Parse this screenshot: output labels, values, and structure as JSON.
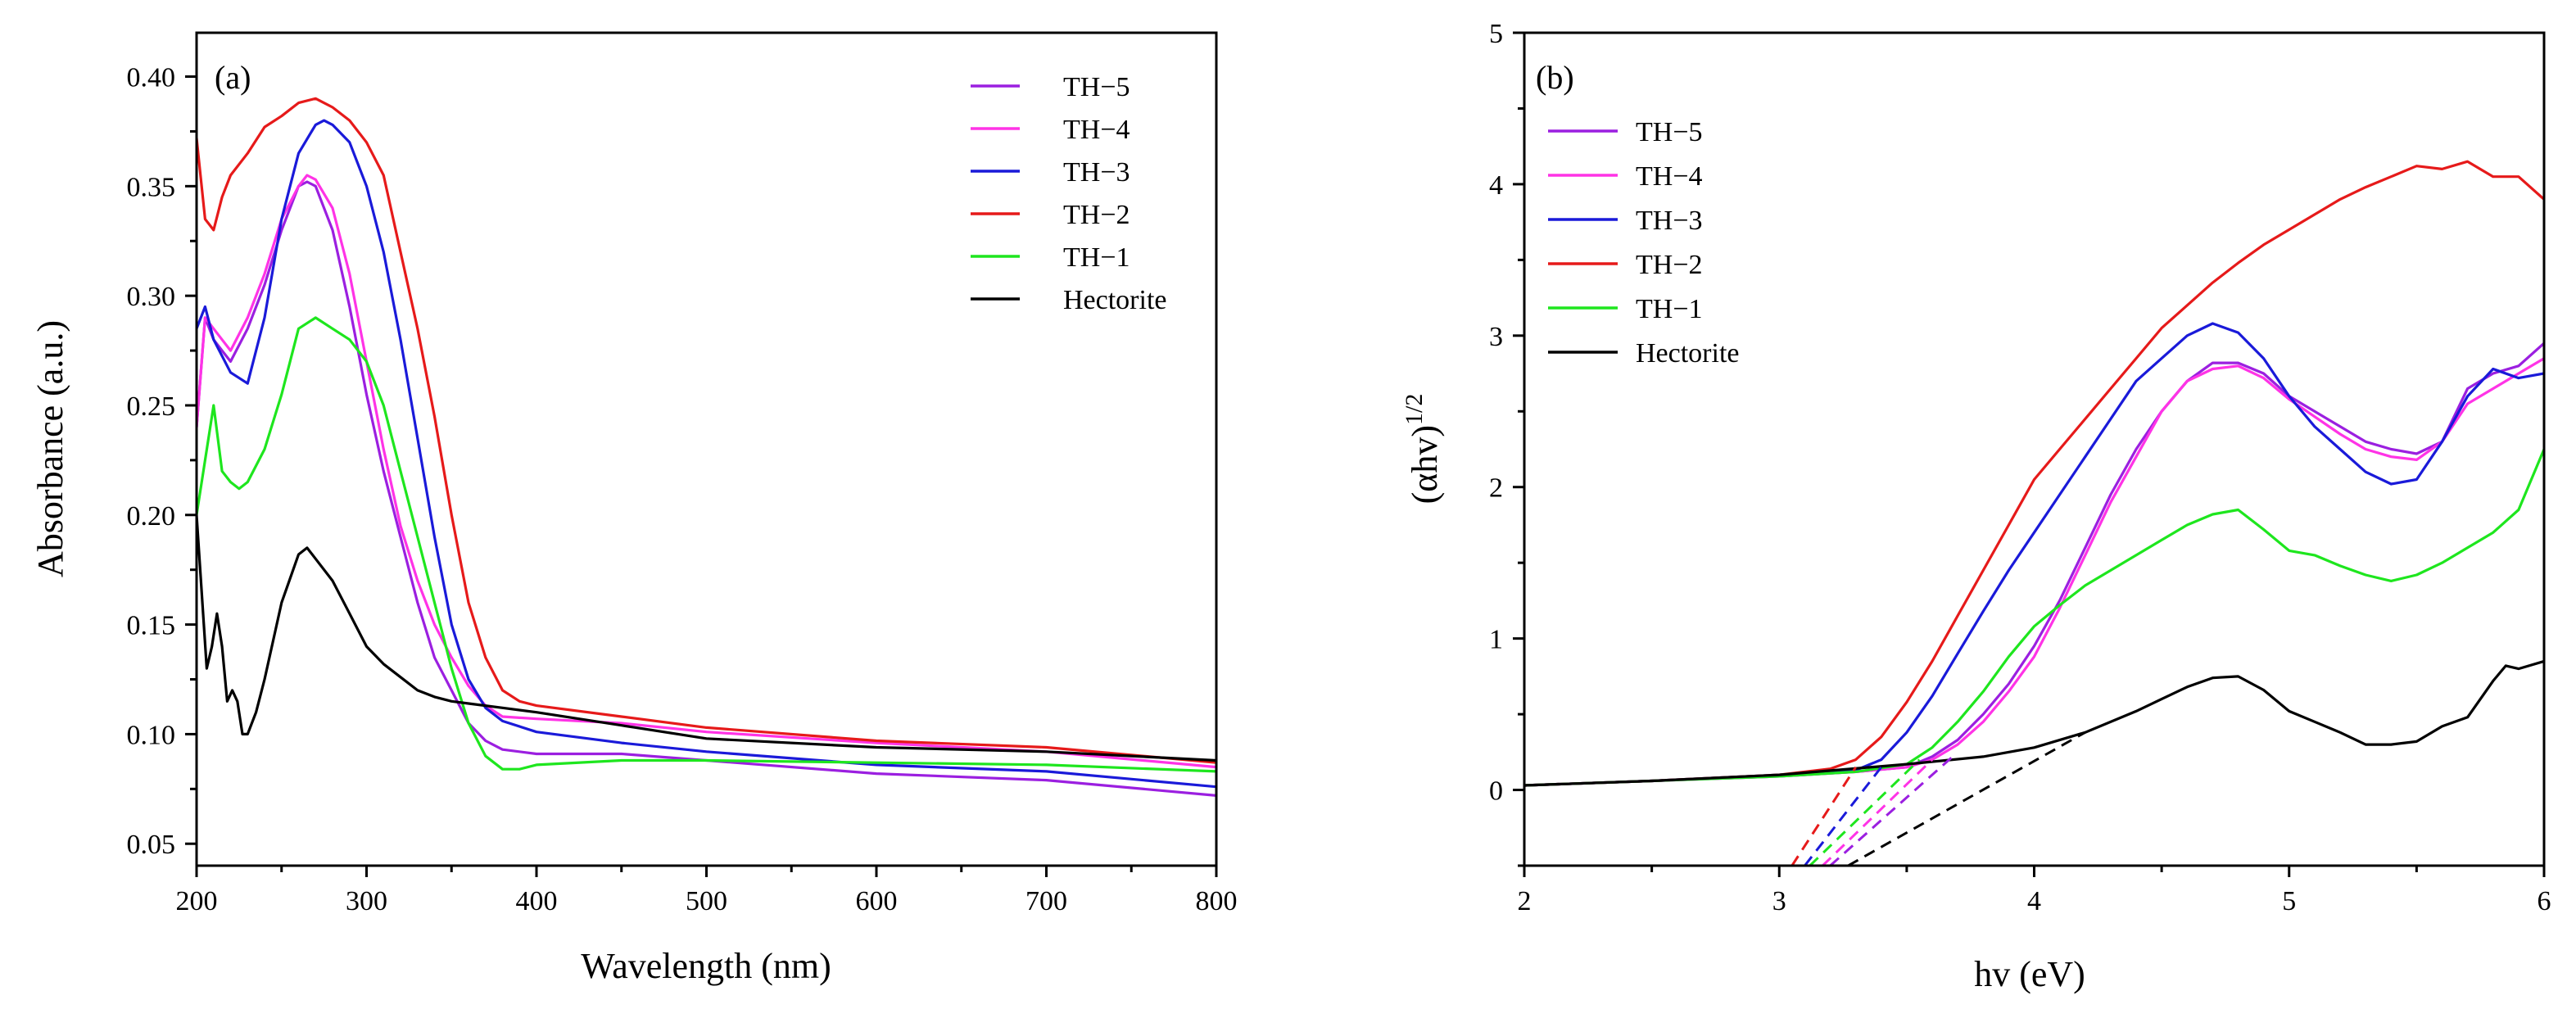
{
  "chart_data": [
    {
      "type": "line",
      "panel_label": "(a)",
      "xlabel": "Wavelength (nm)",
      "ylabel": "Absorbance (a.u.)",
      "xlim": [
        200,
        800
      ],
      "ylim": [
        0.04,
        0.42
      ],
      "xticks": [
        200,
        300,
        400,
        500,
        600,
        700,
        800
      ],
      "xtick_labels": [
        "200",
        "300",
        "400",
        "500",
        "600",
        "700",
        "800"
      ],
      "yticks": [
        0.05,
        0.1,
        0.15,
        0.2,
        0.25,
        0.3,
        0.35,
        0.4
      ],
      "ytick_labels": [
        "0.05",
        "0.10",
        "0.15",
        "0.20",
        "0.25",
        "0.30",
        "0.35",
        "0.40"
      ],
      "legend_position": "top-right",
      "series": [
        {
          "name": "TH−5",
          "color": "#9b1fe0",
          "x": [
            200,
            205,
            210,
            215,
            220,
            230,
            240,
            250,
            260,
            265,
            270,
            280,
            290,
            300,
            310,
            320,
            330,
            340,
            350,
            360,
            370,
            380,
            400,
            450,
            500,
            600,
            700,
            800
          ],
          "y": [
            0.24,
            0.29,
            0.28,
            0.275,
            0.27,
            0.285,
            0.305,
            0.33,
            0.35,
            0.352,
            0.35,
            0.33,
            0.295,
            0.255,
            0.22,
            0.19,
            0.16,
            0.135,
            0.12,
            0.105,
            0.097,
            0.093,
            0.091,
            0.091,
            0.088,
            0.082,
            0.079,
            0.072
          ]
        },
        {
          "name": "TH−4",
          "color": "#ff33e6",
          "x": [
            200,
            205,
            210,
            215,
            220,
            230,
            240,
            250,
            260,
            265,
            270,
            280,
            290,
            300,
            310,
            320,
            330,
            340,
            350,
            360,
            370,
            380,
            400,
            450,
            500,
            600,
            700,
            800
          ],
          "y": [
            0.24,
            0.29,
            0.285,
            0.28,
            0.275,
            0.29,
            0.31,
            0.335,
            0.35,
            0.355,
            0.353,
            0.34,
            0.31,
            0.27,
            0.23,
            0.195,
            0.17,
            0.15,
            0.135,
            0.122,
            0.113,
            0.108,
            0.107,
            0.105,
            0.101,
            0.096,
            0.092,
            0.085
          ]
        },
        {
          "name": "TH−3",
          "color": "#1a1ad9",
          "x": [
            200,
            205,
            210,
            220,
            230,
            240,
            250,
            260,
            270,
            275,
            280,
            290,
            300,
            310,
            320,
            330,
            340,
            350,
            360,
            370,
            380,
            400,
            450,
            500,
            600,
            700,
            800
          ],
          "y": [
            0.285,
            0.295,
            0.28,
            0.265,
            0.26,
            0.29,
            0.335,
            0.365,
            0.378,
            0.38,
            0.378,
            0.37,
            0.35,
            0.32,
            0.28,
            0.235,
            0.19,
            0.15,
            0.125,
            0.112,
            0.106,
            0.101,
            0.096,
            0.092,
            0.086,
            0.083,
            0.076
          ]
        },
        {
          "name": "TH−2",
          "color": "#e61a1a",
          "x": [
            200,
            205,
            210,
            215,
            220,
            230,
            240,
            250,
            260,
            270,
            280,
            290,
            300,
            310,
            320,
            330,
            340,
            350,
            360,
            370,
            380,
            390,
            400,
            450,
            500,
            600,
            700,
            800
          ],
          "y": [
            0.372,
            0.335,
            0.33,
            0.345,
            0.355,
            0.365,
            0.377,
            0.382,
            0.388,
            0.39,
            0.386,
            0.38,
            0.37,
            0.355,
            0.32,
            0.285,
            0.245,
            0.2,
            0.16,
            0.135,
            0.12,
            0.115,
            0.113,
            0.108,
            0.103,
            0.097,
            0.094,
            0.087
          ]
        },
        {
          "name": "TH−1",
          "color": "#1ee61e",
          "x": [
            200,
            205,
            210,
            215,
            220,
            225,
            230,
            240,
            250,
            260,
            270,
            280,
            290,
            300,
            310,
            320,
            330,
            340,
            350,
            360,
            370,
            380,
            390,
            400,
            450,
            500,
            600,
            700,
            800
          ],
          "y": [
            0.2,
            0.225,
            0.25,
            0.22,
            0.215,
            0.212,
            0.215,
            0.23,
            0.255,
            0.285,
            0.29,
            0.285,
            0.28,
            0.27,
            0.25,
            0.22,
            0.19,
            0.16,
            0.13,
            0.105,
            0.09,
            0.084,
            0.084,
            0.086,
            0.088,
            0.088,
            0.087,
            0.086,
            0.083
          ]
        },
        {
          "name": "Hectorite",
          "color": "#000000",
          "x": [
            200,
            203,
            206,
            209,
            212,
            215,
            218,
            221,
            224,
            227,
            230,
            235,
            240,
            250,
            260,
            265,
            270,
            280,
            290,
            300,
            310,
            320,
            330,
            340,
            350,
            360,
            380,
            400,
            450,
            500,
            600,
            700,
            800
          ],
          "y": [
            0.2,
            0.165,
            0.13,
            0.14,
            0.155,
            0.14,
            0.115,
            0.12,
            0.115,
            0.1,
            0.1,
            0.11,
            0.125,
            0.16,
            0.182,
            0.185,
            0.18,
            0.17,
            0.155,
            0.14,
            0.132,
            0.126,
            0.12,
            0.117,
            0.115,
            0.114,
            0.112,
            0.11,
            0.104,
            0.098,
            0.094,
            0.092,
            0.088
          ]
        }
      ]
    },
    {
      "type": "line",
      "panel_label": "(b)",
      "xlabel": "hv (eV)",
      "ylabel": "(αhv)",
      "ylabel_superscript": "1/2",
      "xlim": [
        2,
        6
      ],
      "ylim": [
        -0.5,
        5
      ],
      "xticks": [
        2,
        3,
        4,
        5,
        6
      ],
      "xtick_labels": [
        "2",
        "3",
        "4",
        "5",
        "6"
      ],
      "yticks": [
        0,
        1,
        2,
        3,
        4,
        5
      ],
      "ytick_labels": [
        "0",
        "1",
        "2",
        "3",
        "4",
        "5"
      ],
      "legend_position": "top-left",
      "series": [
        {
          "name": "TH−5",
          "color": "#9b1fe0",
          "x": [
            2,
            2.5,
            3,
            3.3,
            3.5,
            3.6,
            3.7,
            3.8,
            3.9,
            4,
            4.1,
            4.2,
            4.3,
            4.4,
            4.5,
            4.6,
            4.7,
            4.8,
            4.9,
            5,
            5.2,
            5.3,
            5.4,
            5.5,
            5.6,
            5.7,
            5.8,
            5.9,
            6
          ],
          "y": [
            0.03,
            0.06,
            0.09,
            0.12,
            0.15,
            0.22,
            0.33,
            0.5,
            0.7,
            0.95,
            1.25,
            1.6,
            1.95,
            2.25,
            2.5,
            2.7,
            2.82,
            2.82,
            2.75,
            2.6,
            2.4,
            2.3,
            2.25,
            2.22,
            2.3,
            2.65,
            2.75,
            2.8,
            2.95
          ]
        },
        {
          "name": "TH−4",
          "color": "#ff33e6",
          "x": [
            2,
            2.5,
            3,
            3.3,
            3.5,
            3.6,
            3.7,
            3.8,
            3.9,
            4,
            4.1,
            4.2,
            4.3,
            4.4,
            4.5,
            4.6,
            4.7,
            4.8,
            4.9,
            5,
            5.2,
            5.3,
            5.4,
            5.5,
            5.6,
            5.7,
            5.8,
            5.9,
            6
          ],
          "y": [
            0.03,
            0.06,
            0.09,
            0.12,
            0.15,
            0.2,
            0.3,
            0.45,
            0.65,
            0.88,
            1.2,
            1.55,
            1.9,
            2.2,
            2.5,
            2.7,
            2.78,
            2.8,
            2.72,
            2.58,
            2.35,
            2.25,
            2.2,
            2.18,
            2.3,
            2.55,
            2.65,
            2.75,
            2.85
          ]
        },
        {
          "name": "TH−3",
          "color": "#1a1ad9",
          "x": [
            2,
            2.5,
            3,
            3.3,
            3.4,
            3.5,
            3.6,
            3.7,
            3.8,
            3.9,
            4,
            4.1,
            4.2,
            4.3,
            4.4,
            4.5,
            4.6,
            4.7,
            4.8,
            4.9,
            5,
            5.1,
            5.2,
            5.3,
            5.4,
            5.5,
            5.6,
            5.7,
            5.8,
            5.9,
            6
          ],
          "y": [
            0.03,
            0.06,
            0.1,
            0.13,
            0.2,
            0.38,
            0.62,
            0.9,
            1.18,
            1.45,
            1.7,
            1.95,
            2.2,
            2.45,
            2.7,
            2.85,
            3.0,
            3.08,
            3.02,
            2.85,
            2.6,
            2.4,
            2.25,
            2.1,
            2.02,
            2.05,
            2.3,
            2.6,
            2.78,
            2.72,
            2.75
          ]
        },
        {
          "name": "TH−2",
          "color": "#e61a1a",
          "x": [
            2,
            2.5,
            3,
            3.2,
            3.3,
            3.4,
            3.5,
            3.6,
            3.7,
            3.8,
            3.9,
            4,
            4.1,
            4.2,
            4.3,
            4.4,
            4.5,
            4.6,
            4.7,
            4.8,
            4.9,
            5,
            5.1,
            5.2,
            5.3,
            5.4,
            5.5,
            5.6,
            5.7,
            5.8,
            5.9,
            6
          ],
          "y": [
            0.03,
            0.06,
            0.1,
            0.14,
            0.2,
            0.35,
            0.58,
            0.85,
            1.15,
            1.45,
            1.75,
            2.05,
            2.25,
            2.45,
            2.65,
            2.85,
            3.05,
            3.2,
            3.35,
            3.48,
            3.6,
            3.7,
            3.8,
            3.9,
            3.98,
            4.05,
            4.12,
            4.1,
            4.15,
            4.05,
            4.05,
            3.9
          ]
        },
        {
          "name": "TH−1",
          "color": "#1ee61e",
          "x": [
            2,
            2.5,
            3,
            3.3,
            3.5,
            3.6,
            3.7,
            3.8,
            3.9,
            4,
            4.1,
            4.2,
            4.3,
            4.4,
            4.5,
            4.6,
            4.7,
            4.8,
            4.9,
            5,
            5.1,
            5.2,
            5.3,
            5.4,
            5.5,
            5.6,
            5.7,
            5.8,
            5.9,
            6
          ],
          "y": [
            0.03,
            0.06,
            0.09,
            0.12,
            0.17,
            0.28,
            0.45,
            0.65,
            0.88,
            1.08,
            1.22,
            1.35,
            1.45,
            1.55,
            1.65,
            1.75,
            1.82,
            1.85,
            1.72,
            1.58,
            1.55,
            1.48,
            1.42,
            1.38,
            1.42,
            1.5,
            1.6,
            1.7,
            1.85,
            2.25
          ]
        },
        {
          "name": "Hectorite",
          "color": "#000000",
          "x": [
            2,
            2.5,
            3,
            3.5,
            3.8,
            4,
            4.2,
            4.4,
            4.5,
            4.6,
            4.7,
            4.8,
            4.9,
            5,
            5.1,
            5.2,
            5.3,
            5.4,
            5.5,
            5.6,
            5.7,
            5.8,
            5.85,
            5.9,
            6
          ],
          "y": [
            0.03,
            0.06,
            0.1,
            0.17,
            0.22,
            0.28,
            0.38,
            0.52,
            0.6,
            0.68,
            0.74,
            0.75,
            0.66,
            0.52,
            0.45,
            0.38,
            0.3,
            0.3,
            0.32,
            0.42,
            0.48,
            0.72,
            0.82,
            0.8,
            0.85
          ]
        }
      ],
      "tangent_lines": [
        {
          "series": "TH−2",
          "color": "#e61a1a",
          "x_start": 3.05,
          "y_start": -0.5,
          "x_end": 3.3,
          "y_end": 0.15
        },
        {
          "series": "TH−3",
          "color": "#1a1ad9",
          "x_start": 3.1,
          "y_start": -0.5,
          "x_end": 3.4,
          "y_end": 0.15
        },
        {
          "series": "TH−1",
          "color": "#1ee61e",
          "x_start": 3.12,
          "y_start": -0.5,
          "x_end": 3.55,
          "y_end": 0.2
        },
        {
          "series": "TH−4",
          "color": "#ff33e6",
          "x_start": 3.17,
          "y_start": -0.5,
          "x_end": 3.6,
          "y_end": 0.2
        },
        {
          "series": "TH−5",
          "color": "#9b1fe0",
          "x_start": 3.2,
          "y_start": -0.5,
          "x_end": 3.68,
          "y_end": 0.22
        },
        {
          "series": "Hectorite",
          "color": "#000000",
          "x_start": 3.27,
          "y_start": -0.5,
          "x_end": 4.2,
          "y_end": 0.38
        }
      ]
    }
  ]
}
